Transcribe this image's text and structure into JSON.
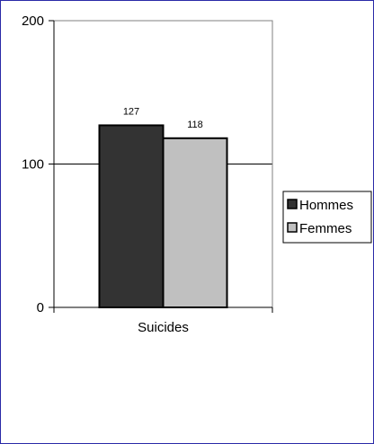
{
  "chart_data": {
    "type": "bar",
    "categories": [
      "Suicides"
    ],
    "series": [
      {
        "name": "Hommes",
        "values": [
          127
        ],
        "color": "#333333"
      },
      {
        "name": "Femmes",
        "values": [
          118
        ],
        "color": "#c0c0c0"
      }
    ],
    "ylim": [
      0,
      200
    ],
    "yticks": [
      0,
      100,
      200
    ],
    "grid": true,
    "legend_position": "right",
    "data_labels": true,
    "title": "",
    "xlabel": "",
    "ylabel": ""
  }
}
